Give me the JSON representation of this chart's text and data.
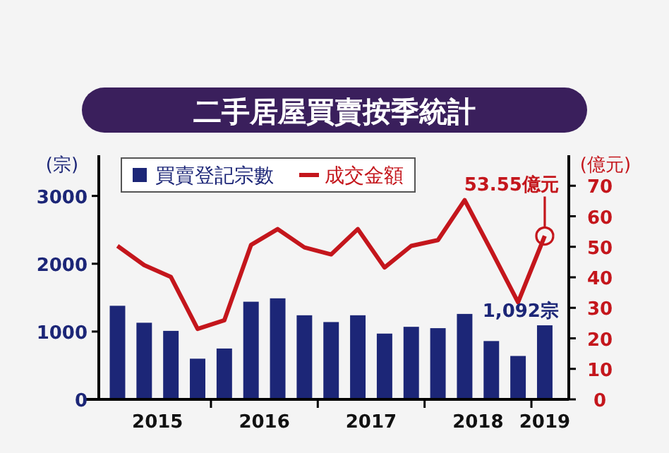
{
  "chart_data": {
    "type": "bar",
    "title": "二手居屋買賣按季統計",
    "ylabel": "(宗)",
    "y2label": "(億元)",
    "x": [
      2015.125,
      2015.375,
      2015.625,
      2015.875,
      2016.125,
      2016.375,
      2016.625,
      2016.875,
      2017.125,
      2017.375,
      2017.625,
      2017.875,
      2018.125,
      2018.375,
      2018.625,
      2018.875,
      2019.125
    ],
    "series": [
      {
        "name": "買賣登記宗數",
        "type": "bar",
        "color": "#1c2677",
        "values": [
          1380,
          1130,
          1010,
          600,
          750,
          1440,
          1490,
          1240,
          1140,
          1240,
          970,
          1070,
          1050,
          1260,
          860,
          640,
          1092
        ]
      },
      {
        "name": "成交金額",
        "type": "line",
        "axis": "y2",
        "color": "#c4161c",
        "values": [
          50.3,
          44.0,
          40.1,
          23.1,
          25.9,
          50.6,
          55.8,
          49.8,
          47.5,
          55.8,
          43.2,
          50.3,
          52.2,
          65.3,
          48.7,
          31.8,
          53.55
        ]
      }
    ],
    "xlim": [
      2014.95,
      2019.35
    ],
    "xticks": [
      {
        "value": 2015.5,
        "label": "2015"
      },
      {
        "value": 2016,
        "label": null
      },
      {
        "value": 2016.5,
        "label": "2016"
      },
      {
        "value": 2017,
        "label": null
      },
      {
        "value": 2017.5,
        "label": "2017"
      },
      {
        "value": 2018,
        "label": null
      },
      {
        "value": 2018.5,
        "label": "2018"
      },
      {
        "value": 2019,
        "label": null
      },
      {
        "value": 2019.125,
        "label": "2019"
      }
    ],
    "ylim": [
      0,
      3600
    ],
    "yticks": [
      0,
      1000,
      2000,
      3000
    ],
    "y2lim": [
      0,
      80
    ],
    "y2ticks": [
      0,
      10,
      20,
      30,
      40,
      50,
      60,
      70
    ],
    "legend": "top",
    "grid": false,
    "marker": "none",
    "line_style": "solid",
    "annotations": [
      "53.55億元",
      {
        "text": "1,092宗",
        "x": 2019.125,
        "y": 1092
      }
    ]
  }
}
